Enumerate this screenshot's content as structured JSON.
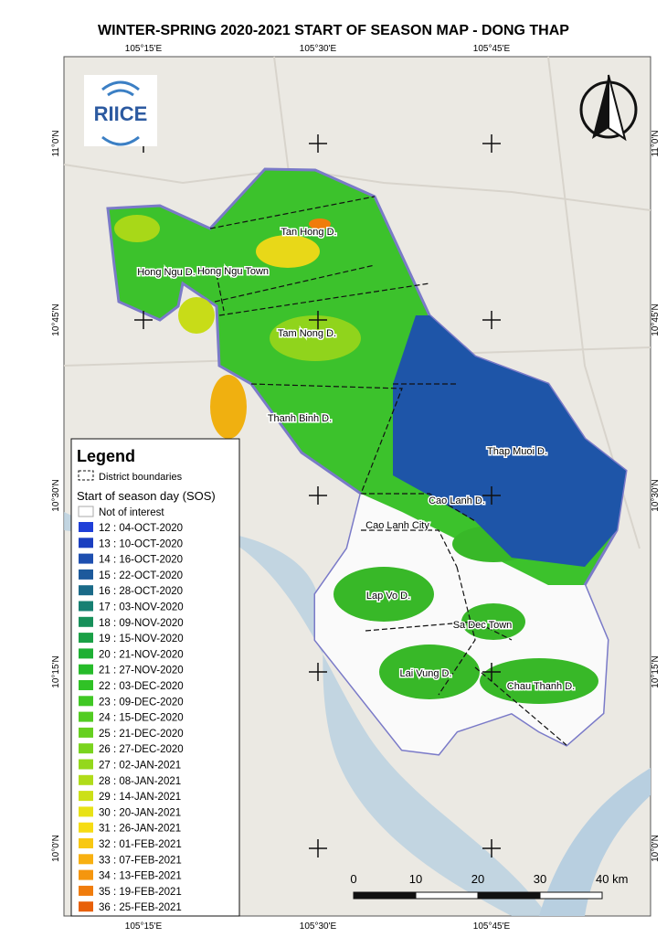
{
  "header": {
    "title": "WINTER-SPRING 2020-2021 START OF SEASON MAP - DONG THAP"
  },
  "coordinates": {
    "top": [
      "105°15'E",
      "105°30'E",
      "105°45'E"
    ],
    "bottom": [
      "105°15'E",
      "105°30'E",
      "105°45'E"
    ],
    "left": [
      "11°0'N",
      "10°45'N",
      "10°30'N",
      "10°15'N",
      "10°0'N"
    ],
    "right": [
      "11°0'N",
      "10°45'N",
      "10°30'N",
      "10°15'N",
      "10°0'N"
    ]
  },
  "logo": {
    "text": "RIICE"
  },
  "legend": {
    "title": "Legend",
    "boundary": "District boundaries",
    "subtitle": "Start of season day (SOS)",
    "not_of_interest": "Not of interest",
    "entries": [
      {
        "label": "12 : 04-OCT-2020",
        "color": "#1f3fd8"
      },
      {
        "label": "13 : 10-OCT-2020",
        "color": "#1b3fc0"
      },
      {
        "label": "14 : 16-OCT-2020",
        "color": "#1e4fb0"
      },
      {
        "label": "15 : 22-OCT-2020",
        "color": "#1d5a9c"
      },
      {
        "label": "16 : 28-OCT-2020",
        "color": "#1a6a88"
      },
      {
        "label": "17 : 03-NOV-2020",
        "color": "#178072"
      },
      {
        "label": "18 : 09-NOV-2020",
        "color": "#17905a"
      },
      {
        "label": "19 : 15-NOV-2020",
        "color": "#1aa046"
      },
      {
        "label": "20 : 21-NOV-2020",
        "color": "#1eb034"
      },
      {
        "label": "21 : 27-NOV-2020",
        "color": "#26bb2a"
      },
      {
        "label": "22 : 03-DEC-2020",
        "color": "#30c226"
      },
      {
        "label": "23 : 09-DEC-2020",
        "color": "#40c824"
      },
      {
        "label": "24 : 15-DEC-2020",
        "color": "#52cc22"
      },
      {
        "label": "25 : 21-DEC-2020",
        "color": "#66d020"
      },
      {
        "label": "26 : 27-DEC-2020",
        "color": "#7ad41e"
      },
      {
        "label": "27 : 02-JAN-2021",
        "color": "#94d81c"
      },
      {
        "label": "28 : 08-JAN-2021",
        "color": "#b0dc1a"
      },
      {
        "label": "29 : 14-JAN-2021",
        "color": "#cce018"
      },
      {
        "label": "30 : 20-JAN-2021",
        "color": "#e8e216"
      },
      {
        "label": "31 : 26-JAN-2021",
        "color": "#f6dc14"
      },
      {
        "label": "32 : 01-FEB-2021",
        "color": "#f8c812"
      },
      {
        "label": "33 : 07-FEB-2021",
        "color": "#f8b010"
      },
      {
        "label": "34 : 13-FEB-2021",
        "color": "#f5960e"
      },
      {
        "label": "35 : 19-FEB-2021",
        "color": "#f07c0c"
      },
      {
        "label": "36 : 25-FEB-2021",
        "color": "#e8600a"
      }
    ]
  },
  "districts": [
    "Tan Hong D.",
    "Hong Ngu D.",
    "Hong Ngu Town",
    "Tam Nong D.",
    "Thanh Binh D.",
    "Thap Muoi D.",
    "Cao Lanh D.",
    "Cao Lanh City",
    "Lap Vo D.",
    "Sa Dec Town",
    "Lai Vung D.",
    "Chau Thanh D."
  ],
  "scale_bar": [
    "0",
    "10",
    "20",
    "30",
    "40 km"
  ]
}
